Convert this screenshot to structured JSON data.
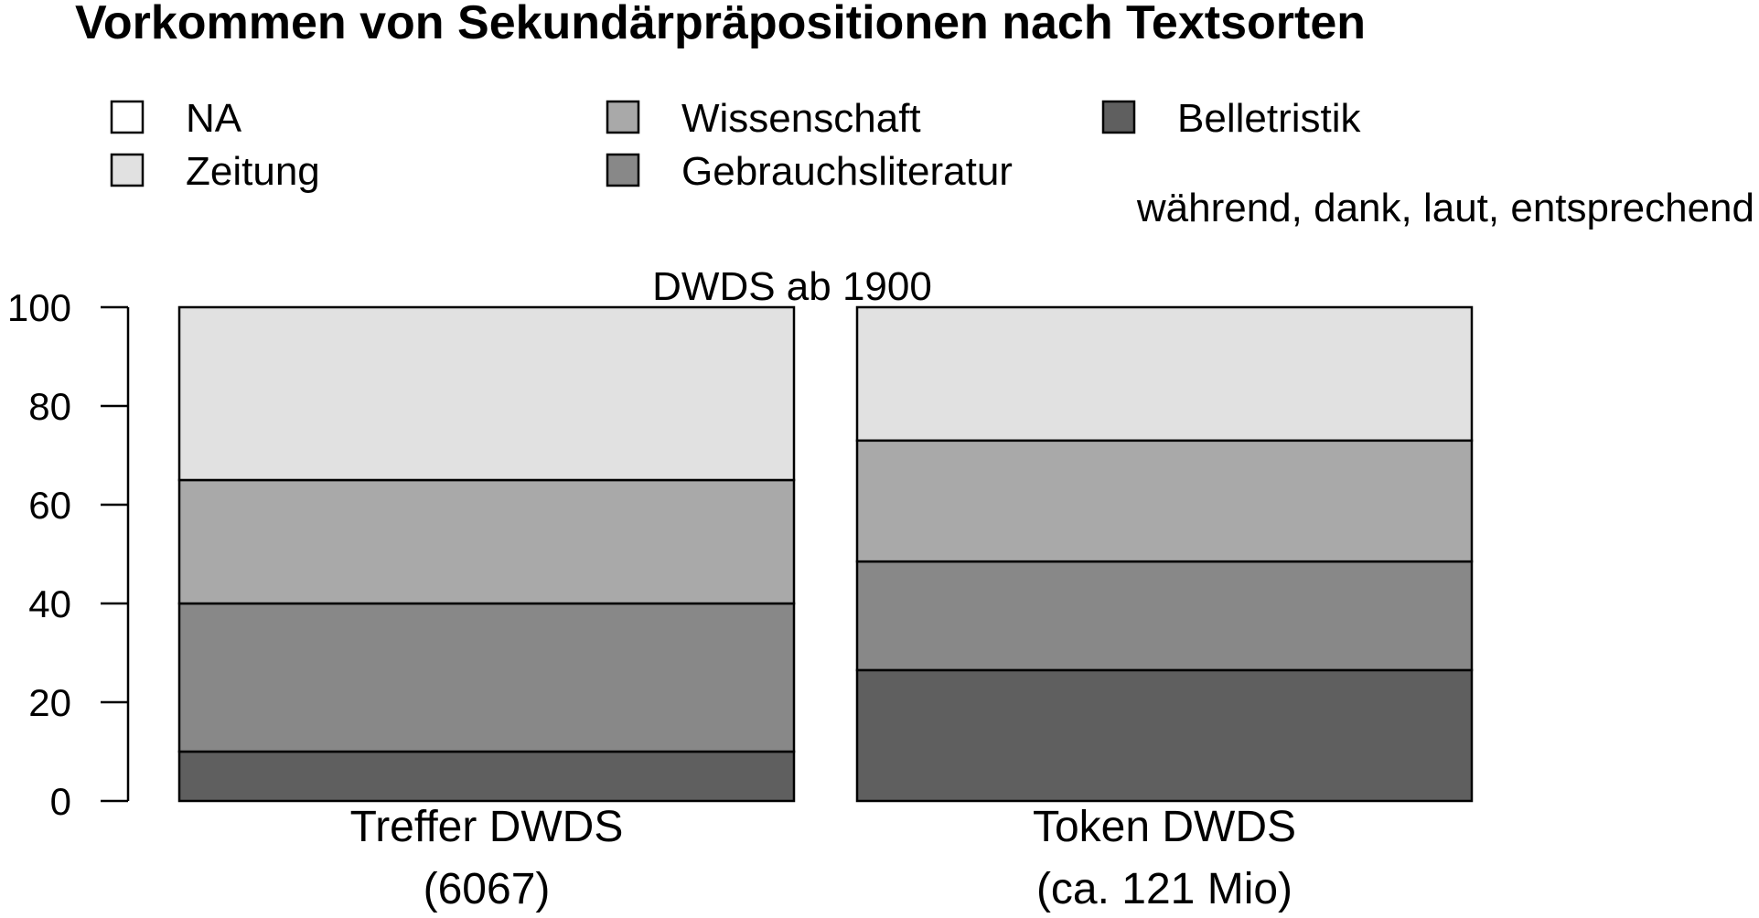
{
  "chart_data": {
    "type": "bar",
    "stacked": true,
    "title": "Vorkommen von Sekundärpräpositionen nach Textsorten",
    "annotations": {
      "top_right": "während, dank, laut, entsprechend",
      "center": "DWDS ab 1900"
    },
    "categories": [
      {
        "line1": "Treffer DWDS",
        "line2": "(6067)"
      },
      {
        "line1": "Token DWDS",
        "line2": "(ca. 121 Mio)"
      }
    ],
    "series": [
      {
        "name": "Belletristik",
        "color": "#5f5f5f",
        "values": [
          10,
          26.5
        ]
      },
      {
        "name": "Gebrauchsliteratur",
        "color": "#888888",
        "values": [
          30,
          22
        ]
      },
      {
        "name": "Wissenschaft",
        "color": "#a9a9a9",
        "values": [
          25,
          24.5
        ]
      },
      {
        "name": "Zeitung",
        "color": "#e1e1e1",
        "values": [
          35,
          27
        ]
      },
      {
        "name": "NA",
        "color": "#ffffff",
        "values": [
          0,
          0
        ]
      }
    ],
    "legend": {
      "placement": "top",
      "order": [
        "NA",
        "Zeitung",
        "Wissenschaft",
        "Gebrauchsliteratur",
        "Belletristik"
      ]
    },
    "yticks": [
      "0",
      "20",
      "40",
      "60",
      "80",
      "100"
    ],
    "ylim": [
      0,
      100
    ],
    "xlabel": "",
    "ylabel": "",
    "grid": false
  }
}
